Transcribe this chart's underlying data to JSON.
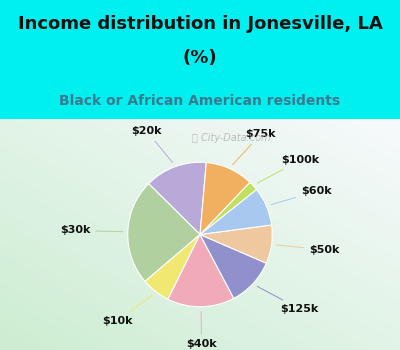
{
  "title_line1": "Income distribution in Jonesville, LA",
  "title_line2": "(%)",
  "subtitle": "Black or African American residents",
  "watermark": "City-Data.com",
  "labels": [
    "$20k",
    "$30k",
    "$10k",
    "$40k",
    "$125k",
    "$50k",
    "$60k",
    "$100k",
    "$75k"
  ],
  "sizes": [
    13,
    22,
    6,
    14,
    10,
    8,
    8,
    2,
    10
  ],
  "colors": [
    "#b8a9d9",
    "#b0d0a0",
    "#f0e870",
    "#f0aab8",
    "#9090cc",
    "#f0c8a0",
    "#a8c8f0",
    "#c0e060",
    "#f0b060"
  ],
  "bg_cyan": "#00f0f0",
  "bg_chart_color": "#d8ede0",
  "title_color": "#111111",
  "subtitle_color": "#3a7a90",
  "title_fontsize": 13,
  "subtitle_fontsize": 10,
  "label_fontsize": 8,
  "startangle": 85
}
